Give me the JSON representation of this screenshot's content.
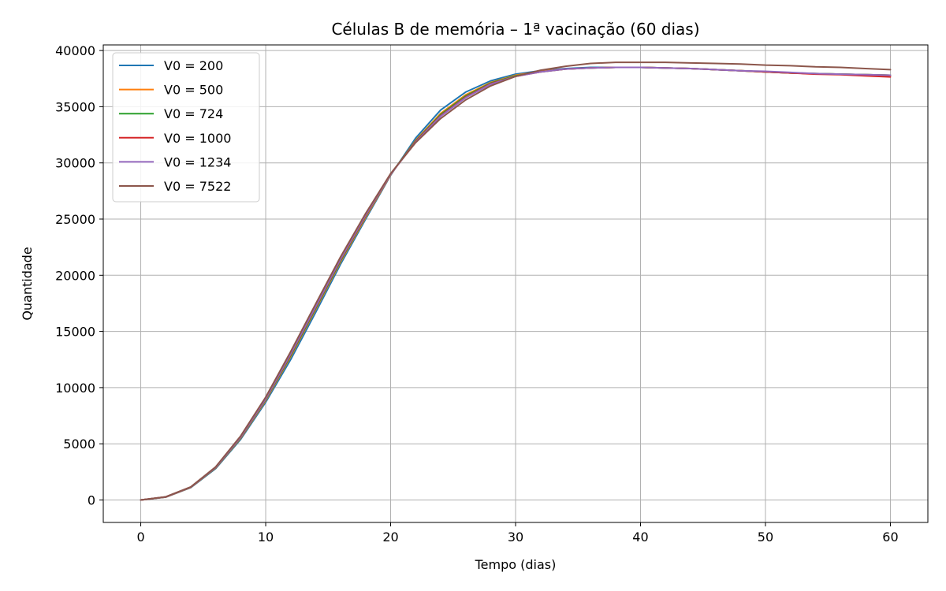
{
  "chart_data": {
    "type": "line",
    "title": "Células B de memória – 1ª vacinação (60 dias)",
    "xlabel": "Tempo (dias)",
    "ylabel": "Quantidade",
    "xlim": [
      -3,
      63
    ],
    "ylim": [
      -2000,
      40500
    ],
    "xticks": [
      0,
      10,
      20,
      30,
      40,
      50,
      60
    ],
    "yticks": [
      0,
      5000,
      10000,
      15000,
      20000,
      25000,
      30000,
      35000,
      40000
    ],
    "grid": true,
    "legend_position": "upper-left",
    "x": [
      0,
      2,
      4,
      6,
      8,
      10,
      12,
      14,
      16,
      18,
      20,
      22,
      24,
      26,
      28,
      30,
      32,
      34,
      36,
      38,
      40,
      42,
      44,
      46,
      48,
      50,
      52,
      54,
      56,
      58,
      60
    ],
    "series": [
      {
        "name": "V0 = 200",
        "color": "#1f77b4",
        "values": [
          0,
          250,
          1100,
          2800,
          5400,
          8700,
          12500,
          16700,
          21000,
          25000,
          28900,
          32200,
          34700,
          36300,
          37300,
          37900,
          38200,
          38400,
          38500,
          38500,
          38500,
          38450,
          38400,
          38300,
          38200,
          38100,
          38000,
          37950,
          37900,
          37850,
          37800
        ]
      },
      {
        "name": "V0 = 500",
        "color": "#ff7f0e",
        "values": [
          0,
          260,
          1120,
          2850,
          5500,
          8850,
          12750,
          16950,
          21200,
          25150,
          28950,
          32000,
          34400,
          36050,
          37150,
          37800,
          38150,
          38350,
          38450,
          38500,
          38500,
          38450,
          38400,
          38300,
          38200,
          38100,
          38000,
          37950,
          37900,
          37850,
          37800
        ]
      },
      {
        "name": "V0 = 724",
        "color": "#2ca02c",
        "values": [
          0,
          265,
          1130,
          2870,
          5540,
          8920,
          12850,
          17050,
          21300,
          25250,
          29000,
          31950,
          34300,
          35950,
          37100,
          37750,
          38100,
          38350,
          38450,
          38500,
          38500,
          38450,
          38400,
          38300,
          38200,
          38100,
          38000,
          37950,
          37900,
          37850,
          37800
        ]
      },
      {
        "name": "V0 = 1000",
        "color": "#d62728",
        "values": [
          0,
          270,
          1140,
          2890,
          5580,
          8980,
          12950,
          17150,
          21400,
          25300,
          29000,
          31900,
          34200,
          35850,
          37050,
          37700,
          38100,
          38350,
          38450,
          38500,
          38500,
          38450,
          38400,
          38300,
          38200,
          38100,
          38000,
          37900,
          37850,
          37750,
          37650
        ]
      },
      {
        "name": "V0 = 1234",
        "color": "#9467bd",
        "values": [
          0,
          272,
          1145,
          2900,
          5600,
          9000,
          13000,
          17200,
          21450,
          25350,
          29000,
          31850,
          34150,
          35800,
          37000,
          37700,
          38100,
          38350,
          38450,
          38500,
          38500,
          38450,
          38400,
          38300,
          38200,
          38150,
          38050,
          37950,
          37900,
          37850,
          37800
        ]
      },
      {
        "name": "V0 = 7522",
        "color": "#8c564b",
        "values": [
          0,
          280,
          1160,
          2950,
          5700,
          9150,
          13200,
          17450,
          21650,
          25500,
          29050,
          31800,
          33950,
          35600,
          36850,
          37700,
          38250,
          38600,
          38850,
          38950,
          38950,
          38950,
          38900,
          38850,
          38800,
          38700,
          38650,
          38550,
          38500,
          38400,
          38300
        ]
      }
    ]
  }
}
